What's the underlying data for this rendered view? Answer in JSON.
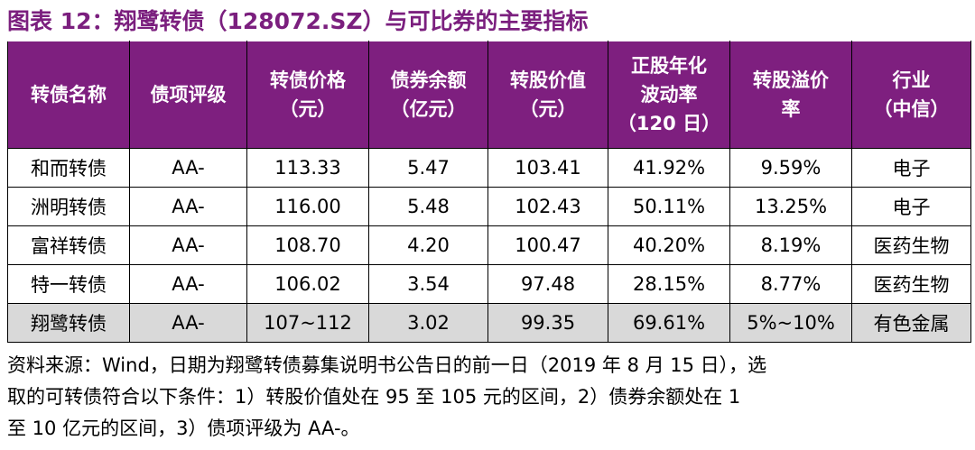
{
  "title": "图表 12：翔鹭转债（128072.SZ）与可比券的主要指标",
  "table": {
    "header": [
      [
        "转债名称"
      ],
      [
        "债项评级"
      ],
      [
        "转债价格",
        "（元）"
      ],
      [
        "债券余额",
        "（亿元）"
      ],
      [
        "转股价值",
        "（元）"
      ],
      [
        "正股年化",
        "波动率",
        "（120 日）"
      ],
      [
        "转股溢价",
        "率"
      ],
      [
        "行业",
        "（中信）"
      ]
    ],
    "rows": [
      [
        "和而转债",
        "AA-",
        "113.33",
        "5.47",
        "103.41",
        "41.92%",
        "9.59%",
        "电子"
      ],
      [
        "洲明转债",
        "AA-",
        "116.00",
        "5.48",
        "102.43",
        "50.11%",
        "13.25%",
        "电子"
      ],
      [
        "富祥转债",
        "AA-",
        "108.70",
        "4.20",
        "100.47",
        "40.20%",
        "8.19%",
        "医药生物"
      ],
      [
        "特一转债",
        "AA-",
        "106.02",
        "3.54",
        "97.48",
        "28.15%",
        "8.77%",
        "医药生物"
      ],
      [
        "翔鹭转债",
        "AA-",
        "107~112",
        "3.02",
        "99.35",
        "69.61%",
        "5%~10%",
        "有色金属"
      ]
    ]
  },
  "source": [
    "资料来源：Wind，日期为翔鹭转债募集说明书公告日的前一日（2019 年 8 月 15 日），选",
    "取的可转债符合以下条件：1）转股价值处在 95 至 105 元的区间，2）债券余额处在 1",
    "至 10 亿元的区间，3）债项评级为 AA-。"
  ]
}
